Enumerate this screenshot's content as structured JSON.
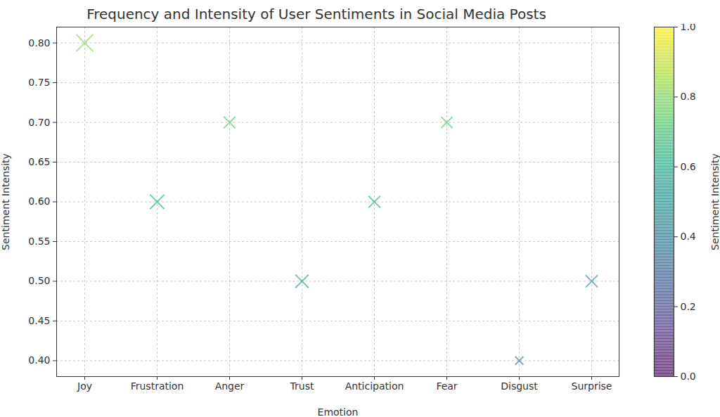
{
  "chart_data": {
    "type": "scatter",
    "title": "Frequency and Intensity of User Sentiments in Social Media Posts",
    "x_label": "Emotion",
    "y_label": "Sentiment Intensity",
    "categories": [
      "Joy",
      "Frustration",
      "Anger",
      "Trust",
      "Anticipation",
      "Fear",
      "Disgust",
      "Surprise"
    ],
    "values": [
      0.8,
      0.6,
      0.7,
      0.5,
      0.6,
      0.7,
      0.4,
      0.5
    ],
    "frequency": [
      250,
      180,
      120,
      150,
      120,
      110,
      60,
      130
    ],
    "marker": "x",
    "grid": true,
    "ylim": [
      0.38,
      0.82
    ],
    "yticks": [
      {
        "value": 0.4,
        "label": "0.40"
      },
      {
        "value": 0.45,
        "label": "0.45"
      },
      {
        "value": 0.5,
        "label": "0.50"
      },
      {
        "value": 0.55,
        "label": "0.55"
      },
      {
        "value": 0.6,
        "label": "0.60"
      },
      {
        "value": 0.65,
        "label": "0.65"
      },
      {
        "value": 0.7,
        "label": "0.70"
      },
      {
        "value": 0.75,
        "label": "0.75"
      },
      {
        "value": 0.8,
        "label": "0.80"
      }
    ],
    "colorbar": {
      "label": "Sentiment Intensity",
      "range": [
        0,
        1
      ],
      "ticks": [
        {
          "value": 0,
          "label": "0.0"
        },
        {
          "value": 0.2,
          "label": "0.2"
        },
        {
          "value": 0.4,
          "label": "0.4"
        },
        {
          "value": 0.6,
          "label": "0.6"
        },
        {
          "value": 0.8,
          "label": "0.8"
        },
        {
          "value": 1,
          "label": "1.0"
        }
      ]
    }
  }
}
